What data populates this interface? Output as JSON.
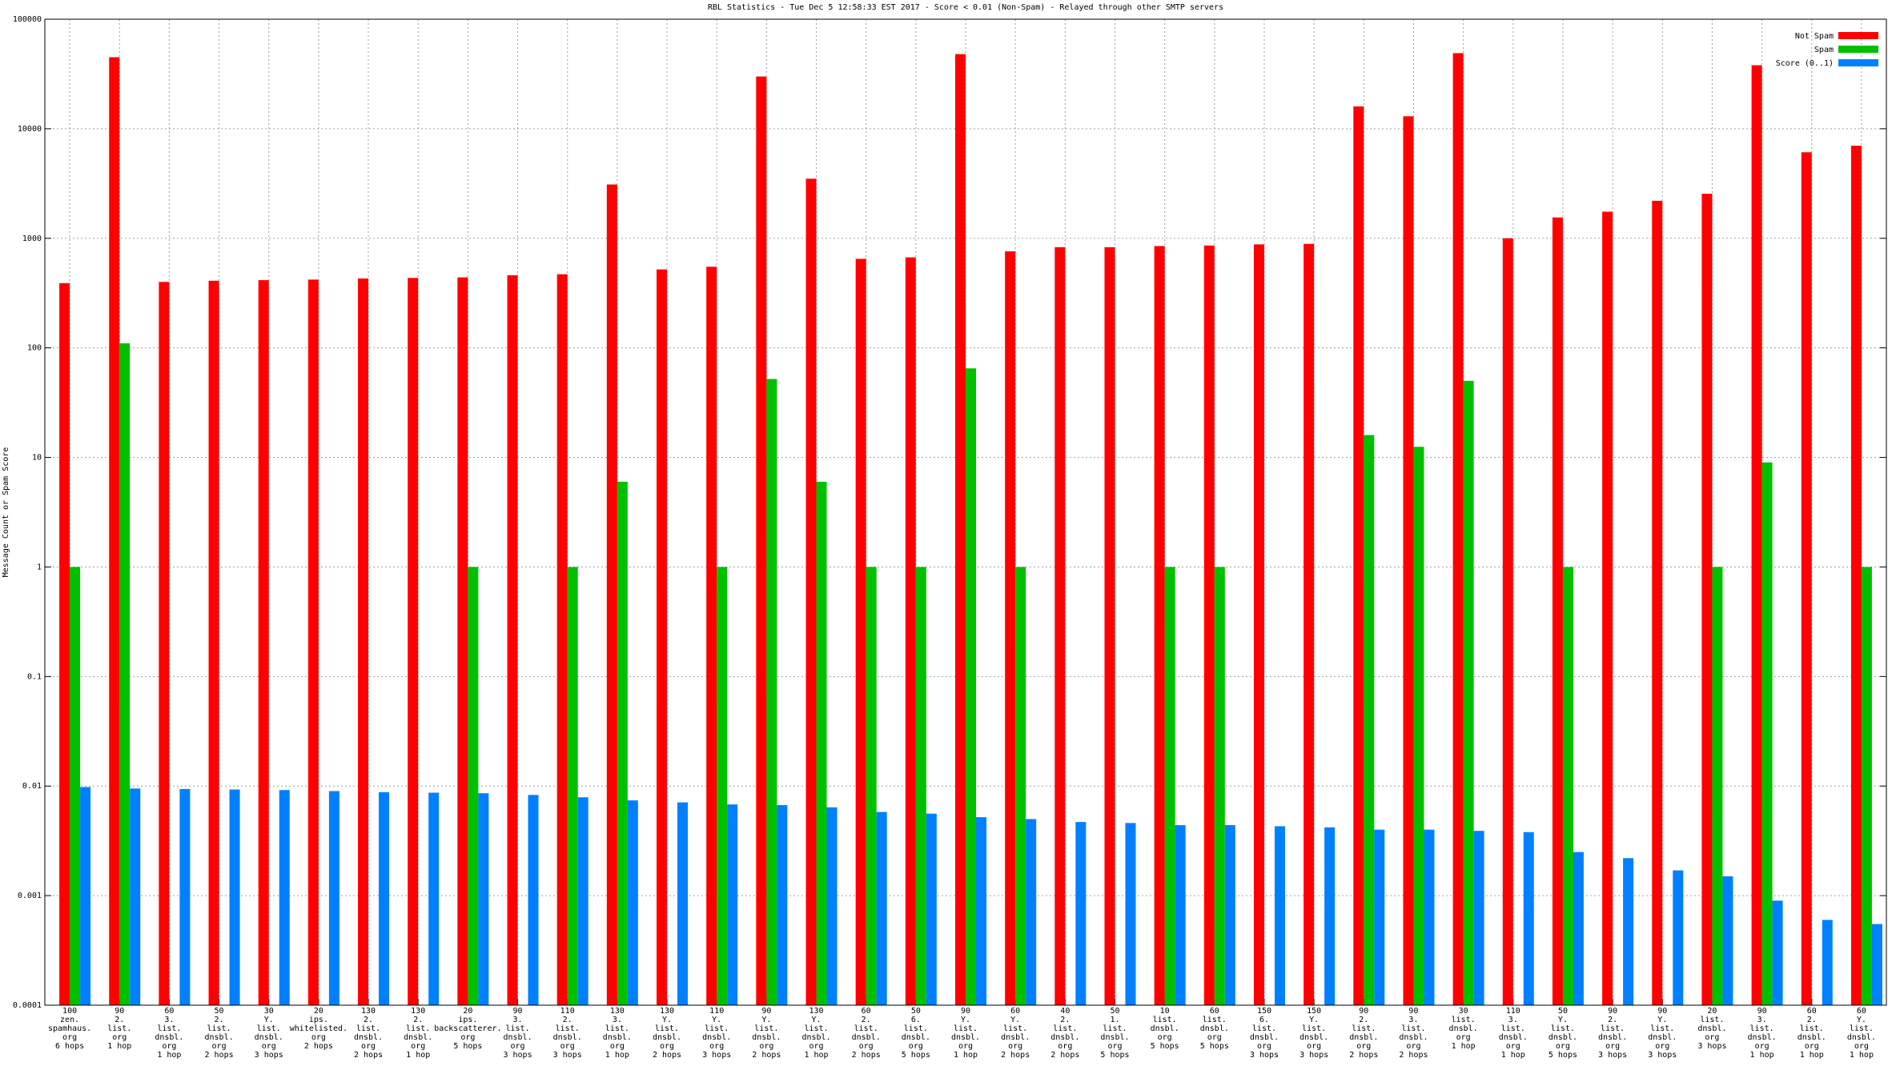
{
  "chart_data": {
    "type": "bar",
    "title": "RBL Statistics - Tue Dec  5 12:58:33 EST 2017 - Score < 0.01 (Non-Spam) - Relayed through other SMTP servers",
    "y_label": "Message Count or Spam Score",
    "log_scale": true,
    "grid": true,
    "legend": "upper right",
    "ylim": [
      0.0001,
      100000
    ],
    "yticks": [
      0.0001,
      0.001,
      0.01,
      0.1,
      1,
      10,
      100,
      1000,
      10000,
      100000
    ],
    "categories": [
      [
        "100",
        "zen.",
        "spamhaus.",
        "org",
        "6 hops"
      ],
      [
        "90",
        "2.",
        "list.",
        "org",
        "1 hop"
      ],
      [
        "60",
        "3.",
        "list.",
        "dnsbl.",
        "org",
        "1 hop"
      ],
      [
        "50",
        "2.",
        "list.",
        "dnsbl.",
        "org",
        "2 hops"
      ],
      [
        "30",
        "Y.",
        "list.",
        "dnsbl.",
        "org",
        "3 hops"
      ],
      [
        "20",
        "ips.",
        "whitelisted.",
        "org",
        "2 hops"
      ],
      [
        "130",
        "2.",
        "list.",
        "dnsbl.",
        "org",
        "2 hops"
      ],
      [
        "130",
        "2.",
        "list.",
        "dnsbl.",
        "org",
        "1 hop"
      ],
      [
        "20",
        "ips.",
        "backscatterer.",
        "org",
        "5 hops"
      ],
      [
        "90",
        "3.",
        "list.",
        "dnsbl.",
        "org",
        "3 hops"
      ],
      [
        "110",
        "2.",
        "list.",
        "dnsbl.",
        "org",
        "3 hops"
      ],
      [
        "130",
        "3.",
        "list.",
        "dnsbl.",
        "org",
        "1 hop"
      ],
      [
        "130",
        "Y.",
        "list.",
        "dnsbl.",
        "org",
        "2 hops"
      ],
      [
        "110",
        "Y.",
        "list.",
        "dnsbl.",
        "org",
        "3 hops"
      ],
      [
        "90",
        "Y.",
        "list.",
        "dnsbl.",
        "org",
        "2 hops"
      ],
      [
        "130",
        "Y.",
        "list.",
        "dnsbl.",
        "org",
        "1 hop"
      ],
      [
        "60",
        "2.",
        "list.",
        "dnsbl.",
        "org",
        "2 hops"
      ],
      [
        "50",
        "6.",
        "list.",
        "dnsbl.",
        "org",
        "5 hops"
      ],
      [
        "90",
        "Y.",
        "list.",
        "dnsbl.",
        "org",
        "1 hop"
      ],
      [
        "60",
        "Y.",
        "list.",
        "dnsbl.",
        "org",
        "2 hops"
      ],
      [
        "40",
        "2.",
        "list.",
        "dnsbl.",
        "org",
        "2 hops"
      ],
      [
        "50",
        "1.",
        "list.",
        "dnsbl.",
        "org",
        "5 hops"
      ],
      [
        "10",
        "list.",
        "dnsbl.",
        "org",
        "5 hops"
      ],
      [
        "60",
        "list.",
        "dnsbl.",
        "org",
        "5 hops"
      ],
      [
        "150",
        "6.",
        "list.",
        "dnsbl.",
        "org",
        "3 hops"
      ],
      [
        "150",
        "Y.",
        "list.",
        "dnsbl.",
        "org",
        "3 hops"
      ],
      [
        "90",
        "2.",
        "list.",
        "dnsbl.",
        "org",
        "2 hops"
      ],
      [
        "90",
        "3.",
        "list.",
        "dnsbl.",
        "org",
        "2 hops"
      ],
      [
        "30",
        "list.",
        "dnsbl.",
        "org",
        "1 hop"
      ],
      [
        "110",
        "3.",
        "list.",
        "dnsbl.",
        "org",
        "1 hop"
      ],
      [
        "50",
        "Y.",
        "list.",
        "dnsbl.",
        "org",
        "5 hops"
      ],
      [
        "90",
        "2.",
        "list.",
        "dnsbl.",
        "org",
        "3 hops"
      ],
      [
        "90",
        "Y.",
        "list.",
        "dnsbl.",
        "org",
        "3 hops"
      ],
      [
        "20",
        "list.",
        "dnsbl.",
        "org",
        "3 hops"
      ],
      [
        "90",
        "3.",
        "list.",
        "dnsbl.",
        "org",
        "1 hop"
      ],
      [
        "60",
        "2.",
        "list.",
        "dnsbl.",
        "org",
        "1 hop"
      ],
      [
        "60",
        "Y.",
        "list.",
        "dnsbl.",
        "org",
        "1 hop"
      ]
    ],
    "series": [
      {
        "name": "Not Spam",
        "color": "#ff0000",
        "values": [
          390,
          45000,
          400,
          410,
          415,
          420,
          430,
          435,
          440,
          460,
          470,
          3100,
          520,
          550,
          30000,
          3500,
          650,
          670,
          48000,
          760,
          830,
          830,
          850,
          860,
          880,
          890,
          16000,
          13000,
          49000,
          1000,
          1550,
          1750,
          2200,
          2550,
          38000,
          6100,
          7000
        ]
      },
      {
        "name": "Spam",
        "color": "#00c000",
        "values": [
          1,
          110,
          null,
          null,
          null,
          null,
          null,
          null,
          1,
          null,
          1,
          6,
          null,
          1,
          52,
          6,
          1,
          1,
          65,
          1,
          null,
          null,
          1,
          1,
          null,
          null,
          16,
          12.5,
          50,
          null,
          1,
          null,
          null,
          1,
          9,
          null,
          1
        ]
      },
      {
        "name": "Score (0..1)",
        "color": "#0080ff",
        "values": [
          0.0098,
          0.0095,
          0.0094,
          0.0093,
          0.0092,
          0.009,
          0.0088,
          0.0087,
          0.0086,
          0.0083,
          0.0079,
          0.0074,
          0.0071,
          0.0068,
          0.0067,
          0.0064,
          0.0058,
          0.0056,
          0.0052,
          0.005,
          0.0047,
          0.0046,
          0.0044,
          0.0044,
          0.0043,
          0.0042,
          0.004,
          0.004,
          0.0039,
          0.0038,
          0.0025,
          0.0022,
          0.0017,
          0.0015,
          0.0009,
          0.0006,
          0.00055
        ]
      }
    ]
  }
}
